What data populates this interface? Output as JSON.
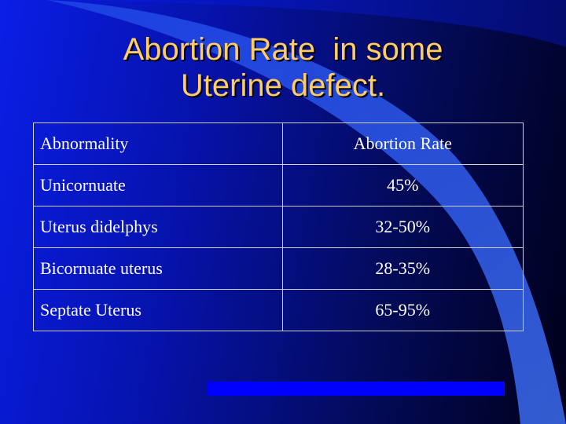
{
  "slide": {
    "title_lines": [
      "Abortion Rate  in some",
      "Uterine defect."
    ],
    "colors": {
      "title": "#ffcc66",
      "background_start": "#0a1ee6",
      "background_end": "#00001a",
      "accent_bar": "#0000ff"
    }
  },
  "table": {
    "headers": [
      "Abnormality",
      "Abortion Rate"
    ],
    "rows": [
      [
        "Unicornuate",
        "45%"
      ],
      [
        "Uterus didelphys",
        "32-50%"
      ],
      [
        "Bicornuate uterus",
        "28-35%"
      ],
      [
        "Septate Uterus",
        "65-95%"
      ]
    ]
  }
}
